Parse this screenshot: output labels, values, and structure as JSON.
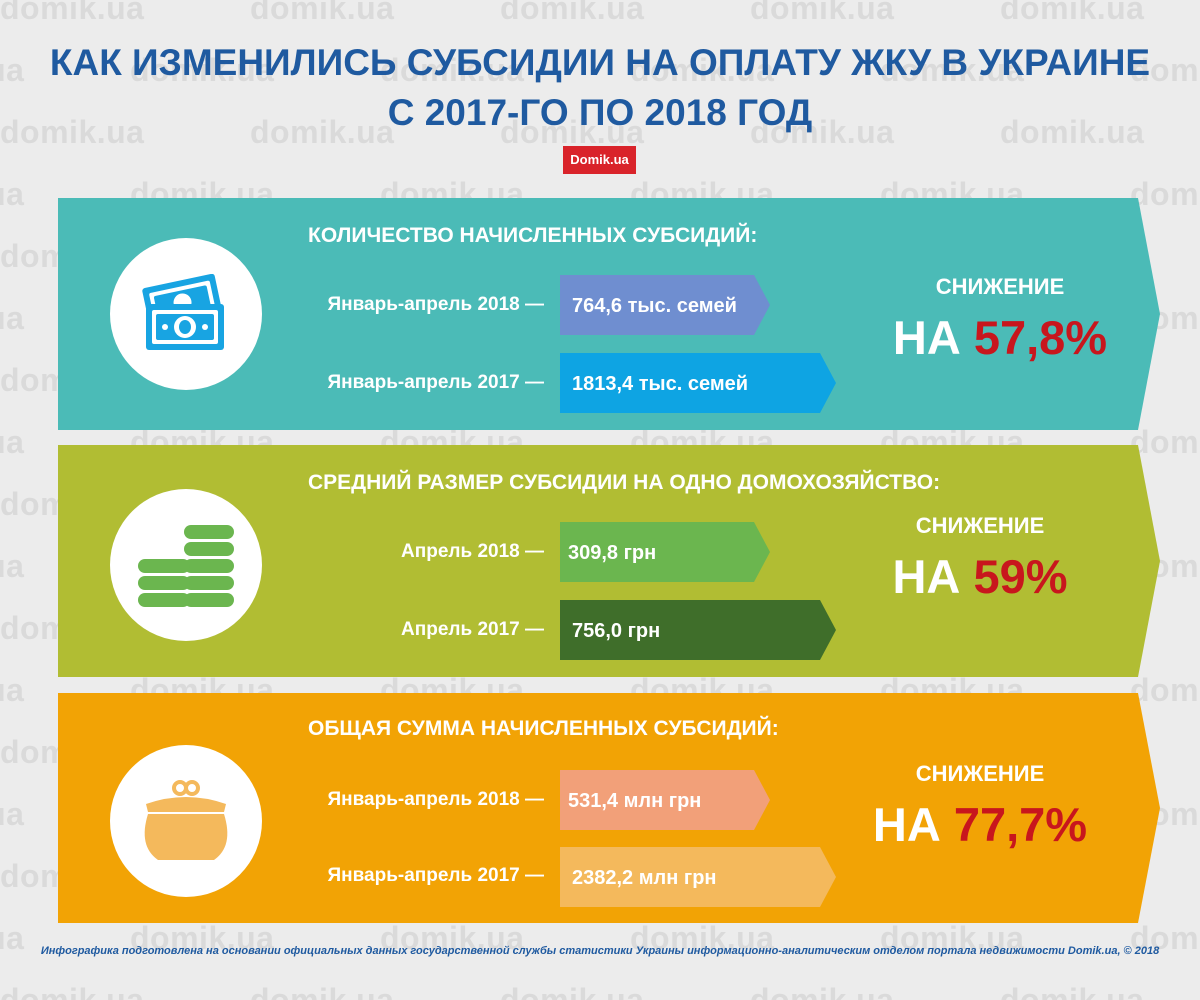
{
  "title": {
    "line1": "КАК ИЗМЕНИЛИСЬ СУБСИДИИ НА ОПЛАТУ ЖКУ В УКРАИНЕ",
    "line2": "С 2017-ГО ПО 2018 ГОД"
  },
  "brand": "Domik.ua",
  "watermark_text": "domik.ua",
  "sections": [
    {
      "title": "КОЛИЧЕСТВО НАЧИСЛЕННЫХ СУБСИДИЙ:",
      "icon": "money-bills-icon",
      "rows": [
        {
          "label": "Январь-апрель 2018 —",
          "value_text": "764,6 тыс. семей",
          "color": "#6f8ed0"
        },
        {
          "label": "Январь-апрель 2017 —",
          "value_text": "1813,4 тыс. семей",
          "color": "#0ea4e3"
        }
      ],
      "decrease_label": "СНИЖЕНИЕ",
      "decrease_prefix": "НА",
      "decrease_pct": "57,8%"
    },
    {
      "title": "СРЕДНИЙ РАЗМЕР СУБСИДИИ НА ОДНО ДОМОХОЗЯЙСТВО:",
      "icon": "coin-stacks-icon",
      "rows": [
        {
          "label": "Апрель 2018 —",
          "value_text": "309,8 грн",
          "color": "#6bb64f"
        },
        {
          "label": "Апрель 2017 —",
          "value_text": "756,0 грн",
          "color": "#3f6e2a"
        }
      ],
      "decrease_label": "СНИЖЕНИЕ",
      "decrease_prefix": "НА",
      "decrease_pct": "59%"
    },
    {
      "title": "ОБЩАЯ СУММА НАЧИСЛЕННЫХ СУБСИДИЙ:",
      "icon": "purse-icon",
      "rows": [
        {
          "label": "Январь-апрель 2018 —",
          "value_text": "531,4 млн грн",
          "color": "#f2a079"
        },
        {
          "label": "Январь-апрель 2017 —",
          "value_text": "2382,2 млн грн",
          "color": "#f4b95c"
        }
      ],
      "decrease_label": "СНИЖЕНИЕ",
      "decrease_prefix": "НА",
      "decrease_pct": "77,7%"
    }
  ],
  "footer": "Инфографика подготовлена на основании официальных данных государственной службы статистики Украины информационно-аналитическим отделом портала недвижимости Domik.ua, © 2018",
  "colors": {
    "title": "#1f5aa0",
    "panel_1": "#4bbbb7",
    "panel_2": "#b1bd33",
    "panel_3": "#f2a305",
    "percent": "#c8161d",
    "brand_bg": "#d9232a"
  },
  "chart_data": [
    {
      "type": "bar",
      "orientation": "horizontal",
      "title": "КОЛИЧЕСТВО НАЧИСЛЕННЫХ СУБСИДИЙ:",
      "categories": [
        "Январь-апрель 2018",
        "Январь-апрель 2017"
      ],
      "values": [
        764.6,
        1813.4
      ],
      "unit": "тыс. семей",
      "decrease_percent": 57.8
    },
    {
      "type": "bar",
      "orientation": "horizontal",
      "title": "СРЕДНИЙ РАЗМЕР СУБСИДИИ НА ОДНО ДОМОХОЗЯЙСТВО:",
      "categories": [
        "Апрель 2018",
        "Апрель 2017"
      ],
      "values": [
        309.8,
        756.0
      ],
      "unit": "грн",
      "decrease_percent": 59
    },
    {
      "type": "bar",
      "orientation": "horizontal",
      "title": "ОБЩАЯ СУММА НАЧИСЛЕННЫХ СУБСИДИЙ:",
      "categories": [
        "Январь-апрель 2018",
        "Январь-апрель 2017"
      ],
      "values": [
        531.4,
        2382.2
      ],
      "unit": "млн грн",
      "decrease_percent": 77.7
    }
  ]
}
